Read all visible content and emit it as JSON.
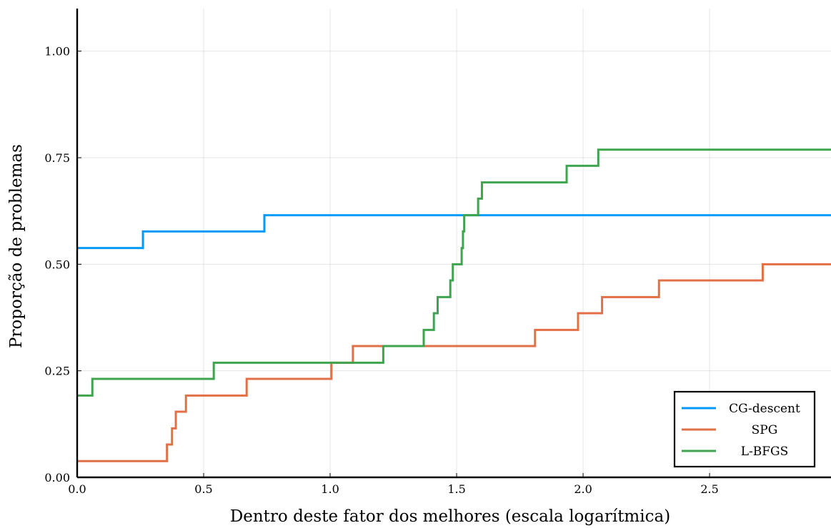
{
  "chart_data": {
    "type": "line",
    "step": true,
    "title": "",
    "xlabel": "Dentro deste fator dos melhores (escala logarítmica)",
    "ylabel": "Proporção de problemas",
    "xlim": [
      0,
      2.98
    ],
    "ylim": [
      0,
      1.1
    ],
    "xticks": [
      0.0,
      0.5,
      1.0,
      1.5,
      2.0,
      2.5
    ],
    "xtick_labels": [
      "0.0",
      "0.5",
      "1.0",
      "1.5",
      "2.0",
      "2.5"
    ],
    "yticks": [
      0.0,
      0.25,
      0.5,
      0.75,
      1.0
    ],
    "ytick_labels": [
      "0.00",
      "0.25",
      "0.50",
      "0.75",
      "1.00"
    ],
    "grid": true,
    "legend_position": "bottom-right",
    "series": [
      {
        "name": "CG-descent",
        "color": "#009AFA",
        "x": [
          0.0,
          0.26,
          0.74,
          2.98
        ],
        "y": [
          0.538,
          0.577,
          0.615,
          0.615
        ]
      },
      {
        "name": "SPG",
        "color": "#E26F46",
        "x": [
          0.0,
          0.355,
          0.375,
          0.39,
          0.43,
          0.67,
          1.005,
          1.09,
          1.81,
          1.98,
          2.075,
          2.3,
          2.71,
          2.98
        ],
        "y": [
          0.038,
          0.077,
          0.115,
          0.154,
          0.192,
          0.231,
          0.269,
          0.308,
          0.346,
          0.385,
          0.423,
          0.462,
          0.5,
          0.5
        ]
      },
      {
        "name": "L-BFGS",
        "color": "#3EA44E",
        "x": [
          0.0,
          0.06,
          0.54,
          1.21,
          1.37,
          1.41,
          1.425,
          1.475,
          1.485,
          1.52,
          1.525,
          1.53,
          1.585,
          1.6,
          1.935,
          2.06,
          2.98
        ],
        "y": [
          0.192,
          0.231,
          0.269,
          0.308,
          0.346,
          0.385,
          0.423,
          0.462,
          0.5,
          0.538,
          0.577,
          0.615,
          0.654,
          0.692,
          0.731,
          0.769,
          0.769
        ]
      }
    ]
  }
}
